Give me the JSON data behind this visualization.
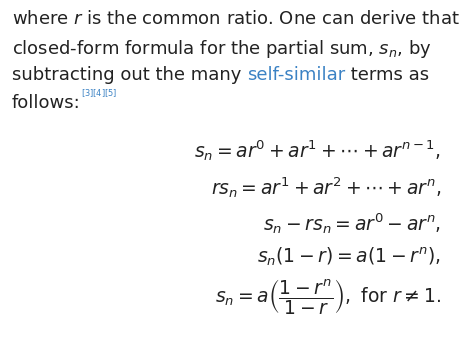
{
  "bg_color": "#ffffff",
  "text_color": "#222222",
  "blue_color": "#3b82c4",
  "figsize": [
    4.74,
    3.59
  ],
  "dpi": 100,
  "body_fontsize": 13.0,
  "eq_fontsize": 13.5,
  "line1": "where $r$ is the common ratio. One can derive that",
  "line2": "closed-form formula for the partial sum, $s_n$, by",
  "line3_a": "subtracting out the many ",
  "line3_b": "self-similar",
  "line3_c": " terms as",
  "line4_a": "follows:",
  "line4_b": "$^{[3][4][5]}$",
  "eq1": "$s_n = ar^0 + ar^1 + \\cdots + ar^{n-1},$",
  "eq2": "$rs_n = ar^1 + ar^2 + \\cdots + ar^n,$",
  "eq3": "$s_n - rs_n = ar^0 - ar^n,$",
  "eq4": "$s_n\\left(1 - r\\right) = a\\left(1 - r^n\\right),$",
  "eq5": "$s_n = a\\left(\\dfrac{1 - r^n}{1 - r}\\right),\\ \\text{for}\\ r \\neq 1.$"
}
